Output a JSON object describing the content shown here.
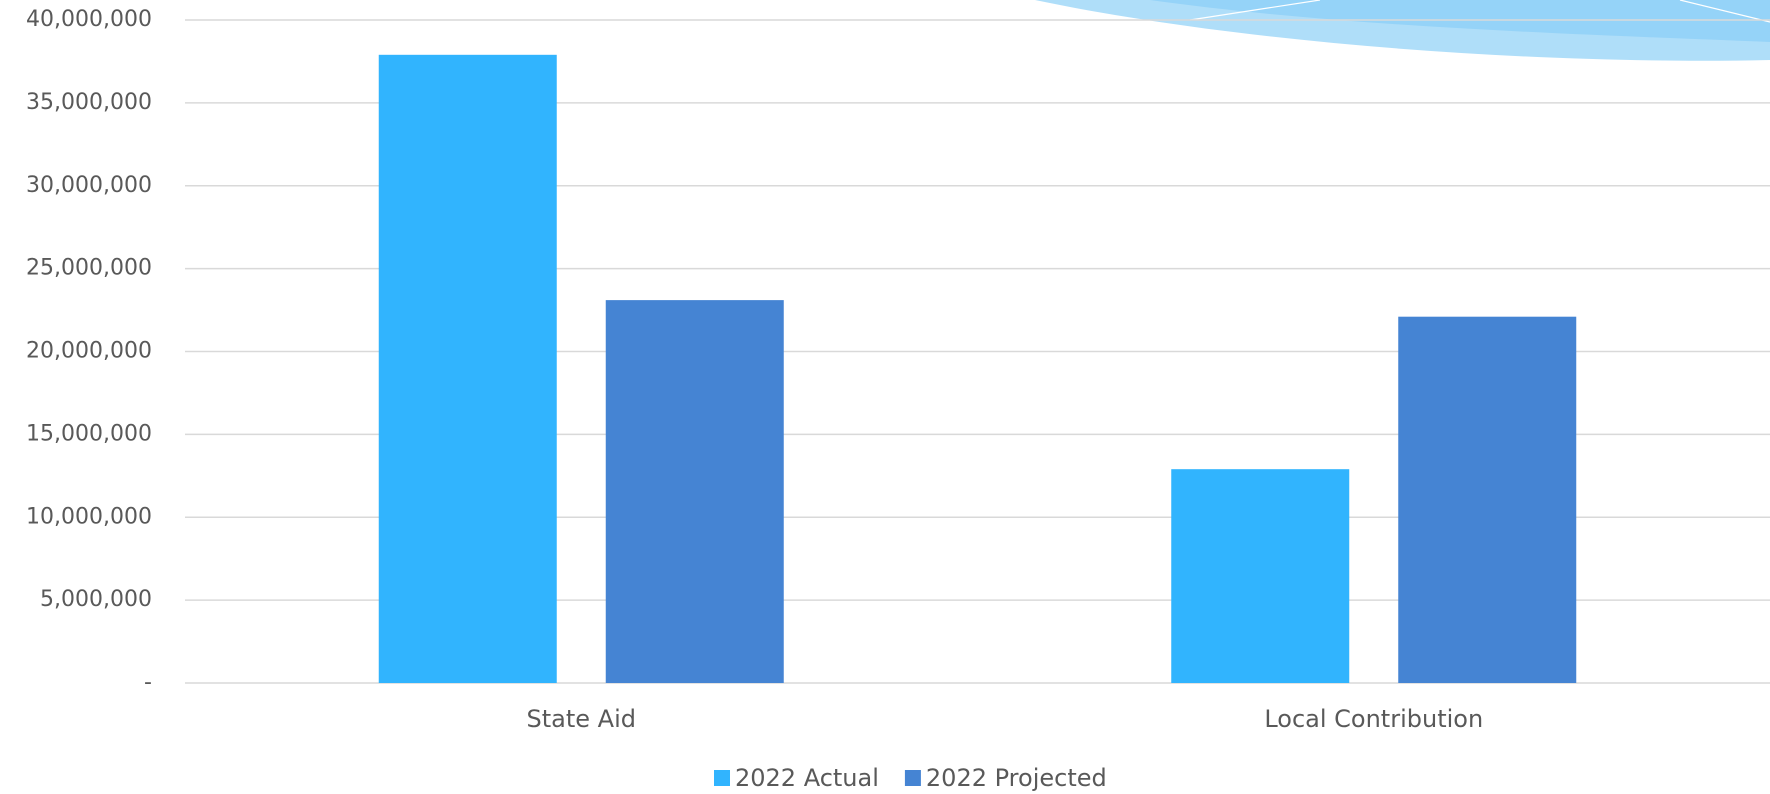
{
  "chart_data": {
    "type": "bar",
    "categories": [
      "State Aid",
      "Local Contribution"
    ],
    "series": [
      {
        "name": "2022 Actual",
        "color": "#31b4fe",
        "values": [
          37900000,
          12900000
        ]
      },
      {
        "name": "2022 Projected",
        "color": "#4584d3",
        "values": [
          23100000,
          22100000
        ]
      }
    ],
    "ylim": [
      0,
      40000000
    ],
    "yticks": [
      {
        "value": 0,
        "label": "-"
      },
      {
        "value": 5000000,
        "label": "5,000,000"
      },
      {
        "value": 10000000,
        "label": "10,000,000"
      },
      {
        "value": 15000000,
        "label": "15,000,000"
      },
      {
        "value": 20000000,
        "label": "20,000,000"
      },
      {
        "value": 25000000,
        "label": "25,000,000"
      },
      {
        "value": 30000000,
        "label": "30,000,000"
      },
      {
        "value": 35000000,
        "label": "35,000,000"
      },
      {
        "value": 40000000,
        "label": "40,000,000"
      }
    ],
    "grid": true,
    "legend": "bottom"
  }
}
